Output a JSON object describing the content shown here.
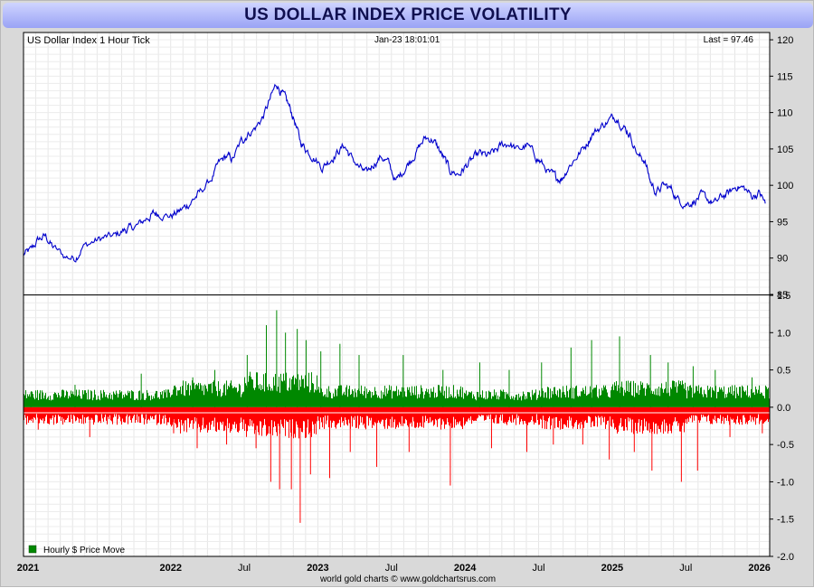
{
  "page_title": "US DOLLAR INDEX PRICE VOLATILITY",
  "footer": "world gold charts © www.goldchartsrus.com",
  "chart_data": [
    {
      "type": "line",
      "label_left": "US Dollar Index 1 Hour Tick",
      "timestamp": "Jan-23  18:01:01",
      "last_label": "Last = 97.46",
      "ylim": [
        85,
        121
      ],
      "yticks": [
        85,
        90,
        95,
        100,
        105,
        110,
        115,
        120
      ],
      "color": "#0000cc",
      "points": [
        [
          2021.0,
          90.5
        ],
        [
          2021.05,
          91.0
        ],
        [
          2021.1,
          92.5
        ],
        [
          2021.15,
          93.0
        ],
        [
          2021.2,
          91.5
        ],
        [
          2021.28,
          90.2
        ],
        [
          2021.35,
          90.0
        ],
        [
          2021.4,
          91.5
        ],
        [
          2021.48,
          92.3
        ],
        [
          2021.55,
          92.8
        ],
        [
          2021.62,
          93.0
        ],
        [
          2021.68,
          93.8
        ],
        [
          2021.72,
          94.0
        ],
        [
          2021.78,
          94.5
        ],
        [
          2021.84,
          95.5
        ],
        [
          2021.88,
          96.0
        ],
        [
          2021.92,
          96.2
        ],
        [
          2022.0,
          95.8
        ],
        [
          2022.05,
          96.3
        ],
        [
          2022.1,
          97.0
        ],
        [
          2022.15,
          98.0
        ],
        [
          2022.2,
          99.0
        ],
        [
          2022.28,
          101.0
        ],
        [
          2022.33,
          103.0
        ],
        [
          2022.38,
          104.0
        ],
        [
          2022.42,
          103.5
        ],
        [
          2022.48,
          106.0
        ],
        [
          2022.52,
          107.0
        ],
        [
          2022.58,
          108.0
        ],
        [
          2022.63,
          109.5
        ],
        [
          2022.68,
          112.0
        ],
        [
          2022.72,
          114.0
        ],
        [
          2022.76,
          112.5
        ],
        [
          2022.8,
          111.0
        ],
        [
          2022.84,
          109.0
        ],
        [
          2022.88,
          106.0
        ],
        [
          2022.92,
          105.0
        ],
        [
          2022.97,
          104.0
        ],
        [
          2023.03,
          102.5
        ],
        [
          2023.08,
          103.5
        ],
        [
          2023.13,
          104.5
        ],
        [
          2023.18,
          105.5
        ],
        [
          2023.22,
          104.0
        ],
        [
          2023.28,
          102.5
        ],
        [
          2023.33,
          101.5
        ],
        [
          2023.38,
          103.0
        ],
        [
          2023.43,
          104.0
        ],
        [
          2023.48,
          103.0
        ],
        [
          2023.53,
          100.5
        ],
        [
          2023.58,
          102.0
        ],
        [
          2023.63,
          103.5
        ],
        [
          2023.68,
          105.0
        ],
        [
          2023.73,
          106.5
        ],
        [
          2023.78,
          106.3
        ],
        [
          2023.82,
          105.0
        ],
        [
          2023.86,
          103.5
        ],
        [
          2023.9,
          102.0
        ],
        [
          2023.96,
          101.5
        ],
        [
          2024.0,
          102.5
        ],
        [
          2024.05,
          103.5
        ],
        [
          2024.1,
          104.3
        ],
        [
          2024.15,
          104.0
        ],
        [
          2024.2,
          104.5
        ],
        [
          2024.25,
          105.5
        ],
        [
          2024.3,
          105.8
        ],
        [
          2024.36,
          104.8
        ],
        [
          2024.42,
          105.5
        ],
        [
          2024.48,
          104.0
        ],
        [
          2024.52,
          103.0
        ],
        [
          2024.58,
          101.5
        ],
        [
          2024.62,
          101.0
        ],
        [
          2024.66,
          101.0
        ],
        [
          2024.7,
          102.5
        ],
        [
          2024.76,
          104.0
        ],
        [
          2024.82,
          105.5
        ],
        [
          2024.86,
          107.0
        ],
        [
          2024.92,
          108.0
        ],
        [
          2024.98,
          109.0
        ],
        [
          2025.03,
          109.5
        ],
        [
          2025.08,
          108.0
        ],
        [
          2025.12,
          107.0
        ],
        [
          2025.18,
          104.0
        ],
        [
          2025.22,
          103.5
        ],
        [
          2025.26,
          100.5
        ],
        [
          2025.3,
          99.0
        ],
        [
          2025.35,
          100.0
        ],
        [
          2025.4,
          99.5
        ],
        [
          2025.45,
          98.0
        ],
        [
          2025.5,
          97.5
        ],
        [
          2025.55,
          97.8
        ],
        [
          2025.6,
          98.5
        ],
        [
          2025.65,
          98.0
        ],
        [
          2025.7,
          97.5
        ],
        [
          2025.75,
          98.5
        ],
        [
          2025.8,
          99.0
        ],
        [
          2025.85,
          100.0
        ],
        [
          2025.9,
          99.5
        ],
        [
          2025.95,
          98.5
        ],
        [
          2026.0,
          99.0
        ],
        [
          2026.04,
          97.5
        ]
      ]
    },
    {
      "type": "bar",
      "legend": "Hourly $ Price Move",
      "ylim": [
        -2.0,
        1.5
      ],
      "yticks": [
        -2.0,
        -1.5,
        -1.0,
        -0.5,
        0.0,
        0.5,
        1.0,
        1.5
      ],
      "up_color": "#008800",
      "down_color": "#ff0000",
      "typical_up_by_half_year": [
        0.2,
        0.2,
        0.3,
        0.4,
        0.25,
        0.25,
        0.2,
        0.25,
        0.3,
        0.25
      ],
      "typical_down_by_half_year": [
        -0.2,
        -0.2,
        -0.3,
        -0.35,
        -0.25,
        -0.25,
        -0.2,
        -0.25,
        -0.3,
        -0.2
      ],
      "spikes": [
        [
          2021.05,
          0.2
        ],
        [
          2021.1,
          -0.3
        ],
        [
          2021.35,
          0.3
        ],
        [
          2021.45,
          -0.4
        ],
        [
          2021.8,
          0.45
        ],
        [
          2022.02,
          -0.35
        ],
        [
          2022.15,
          0.4
        ],
        [
          2022.18,
          -0.55
        ],
        [
          2022.3,
          0.5
        ],
        [
          2022.38,
          -0.5
        ],
        [
          2022.52,
          0.7
        ],
        [
          2022.58,
          -0.55
        ],
        [
          2022.65,
          1.1
        ],
        [
          2022.68,
          -1.0
        ],
        [
          2022.72,
          1.3
        ],
        [
          2022.74,
          -1.1
        ],
        [
          2022.78,
          1.0
        ],
        [
          2022.82,
          -1.1
        ],
        [
          2022.86,
          1.05
        ],
        [
          2022.88,
          -1.55
        ],
        [
          2022.92,
          0.9
        ],
        [
          2022.95,
          -0.9
        ],
        [
          2023.02,
          0.75
        ],
        [
          2023.08,
          -0.95
        ],
        [
          2023.15,
          0.85
        ],
        [
          2023.22,
          -0.6
        ],
        [
          2023.28,
          0.7
        ],
        [
          2023.4,
          -0.8
        ],
        [
          2023.58,
          0.7
        ],
        [
          2023.62,
          -0.6
        ],
        [
          2023.85,
          0.5
        ],
        [
          2023.9,
          -1.05
        ],
        [
          2024.1,
          0.6
        ],
        [
          2024.18,
          -0.55
        ],
        [
          2024.3,
          0.5
        ],
        [
          2024.42,
          -0.6
        ],
        [
          2024.52,
          0.6
        ],
        [
          2024.6,
          -0.5
        ],
        [
          2024.72,
          0.8
        ],
        [
          2024.8,
          -0.5
        ],
        [
          2024.86,
          0.9
        ],
        [
          2024.98,
          -0.7
        ],
        [
          2025.05,
          0.95
        ],
        [
          2025.15,
          -0.6
        ],
        [
          2025.26,
          0.7
        ],
        [
          2025.27,
          -0.85
        ],
        [
          2025.38,
          0.6
        ],
        [
          2025.47,
          -1.0
        ],
        [
          2025.55,
          0.55
        ],
        [
          2025.58,
          -0.85
        ],
        [
          2025.7,
          0.5
        ],
        [
          2025.8,
          -0.4
        ],
        [
          2025.95,
          0.4
        ],
        [
          2026.02,
          -0.35
        ]
      ]
    }
  ],
  "x_axis": {
    "ticks": [
      {
        "t": 2021.0,
        "label": "2021",
        "bold": true
      },
      {
        "t": 2022.0,
        "label": "2022",
        "bold": true
      },
      {
        "t": 2022.5,
        "label": "Jul",
        "bold": false
      },
      {
        "t": 2023.0,
        "label": "2023",
        "bold": true
      },
      {
        "t": 2023.5,
        "label": "Jul",
        "bold": false
      },
      {
        "t": 2024.0,
        "label": "2024",
        "bold": true
      },
      {
        "t": 2024.5,
        "label": "Jul",
        "bold": false
      },
      {
        "t": 2025.0,
        "label": "2025",
        "bold": true
      },
      {
        "t": 2025.5,
        "label": "Jul",
        "bold": false
      },
      {
        "t": 2026.0,
        "label": "2026",
        "bold": true
      }
    ]
  }
}
